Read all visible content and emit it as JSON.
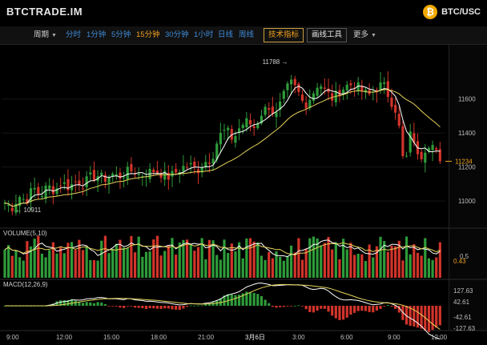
{
  "header": {
    "brand": "BTCTRADE.IM",
    "pair_label": "BTC/USC",
    "coin_icon": "bitcoin-icon",
    "coin_symbol": "₿"
  },
  "toolbar": {
    "period_label": "周期",
    "intervals": [
      "分时",
      "1分钟",
      "5分钟",
      "15分钟",
      "30分钟",
      "1小时",
      "日线",
      "周线"
    ],
    "active_interval": "15分钟",
    "indicators_label": "技术指标",
    "drawing_tools_label": "画线工具",
    "more_label": "更多"
  },
  "colors": {
    "up": "#2e9c3a",
    "down": "#d1342a",
    "ma_short": "#ffffff",
    "ma_long": "#e6d25a",
    "active": "#f0a020",
    "interval": "#3f8ad6"
  },
  "chart_data": [
    {
      "type": "candlestick",
      "ylim": [
        10850,
        11900
      ],
      "y_ticks": [
        11000,
        11200,
        11400,
        11600
      ],
      "last_price": 11234,
      "annotations": {
        "high": 11788,
        "low": 10911
      },
      "x_ticks": [
        "9:00",
        "12:00",
        "15:00",
        "18:00",
        "21:00",
        "3月6日",
        "3:00",
        "6:00",
        "9:00",
        "12:00"
      ],
      "price_track": [
        10990,
        10960,
        11030,
        11000,
        11080,
        11030,
        11090,
        11060,
        11110,
        11080,
        11120,
        11100,
        11140,
        11150,
        11130,
        11160,
        11140,
        11170,
        11180,
        11150,
        11170,
        11180,
        11160,
        11140,
        11170,
        11200,
        11210,
        11180,
        11230,
        11250,
        11380,
        11420,
        11360,
        11440,
        11470,
        11430,
        11520,
        11560,
        11500,
        11610,
        11700,
        11650,
        11560,
        11620,
        11700,
        11640,
        11600,
        11650,
        11680,
        11690,
        11650,
        11620,
        11660,
        11690,
        11600,
        11520,
        11180,
        11430,
        11230,
        11320,
        11360,
        11234
      ]
    },
    {
      "type": "bar",
      "title": "VOLUME(5,10)",
      "y_ticks": [
        "0.5"
      ],
      "last_value": "0.43"
    },
    {
      "type": "bar",
      "title": "MACD(12,26,9)",
      "y_ticks": [
        "127.63",
        "42.61",
        "-42.61",
        "-127.63"
      ]
    }
  ]
}
